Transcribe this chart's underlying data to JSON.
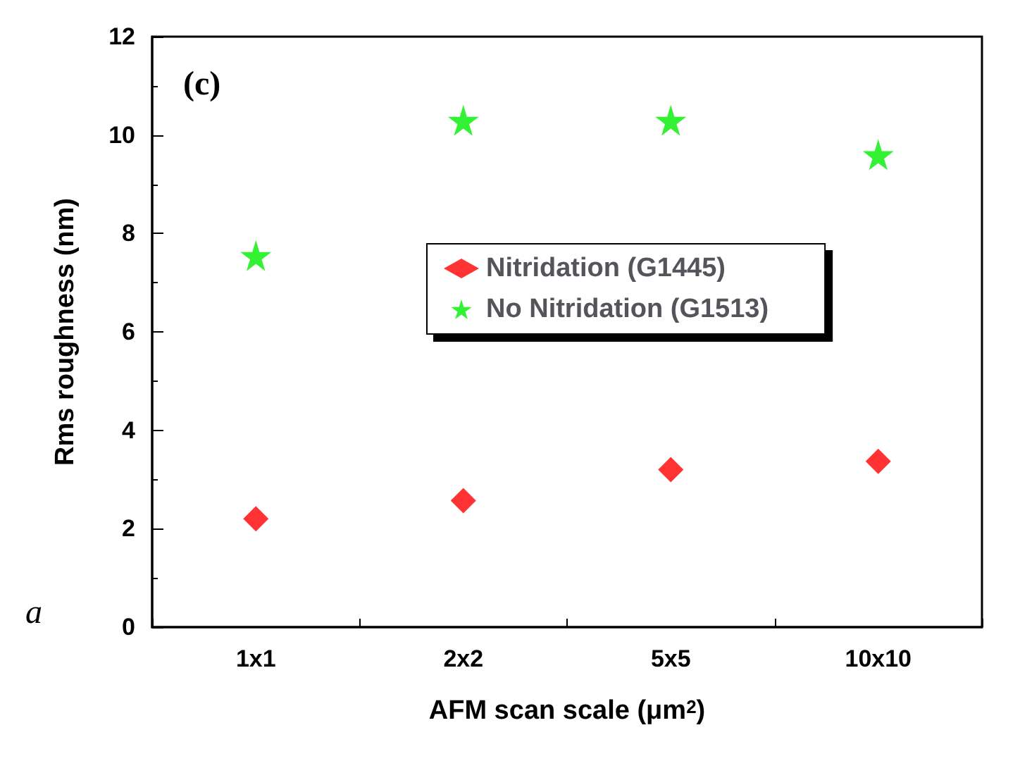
{
  "chart_data": {
    "type": "scatter",
    "xlabel": "AFM scan scale (μm$^{2}$)",
    "ylabel": "Rms roughness (nm)",
    "categories": [
      "1x1",
      "2x2",
      "5x5",
      "10x10"
    ],
    "series": [
      {
        "name": "Nitridation (G1445)",
        "color": "#ff0000",
        "marker": "diamond",
        "values": [
          2.2,
          2.57,
          3.2,
          3.37
        ]
      },
      {
        "name": "No Nitridation (G1513)",
        "color": "#00ee00",
        "marker": "star",
        "values": [
          7.55,
          10.3,
          10.3,
          9.6
        ]
      }
    ],
    "ylim": [
      0,
      12
    ],
    "yticks": [
      0,
      2,
      4,
      6,
      8,
      10,
      12
    ],
    "grid": false,
    "legend": "right",
    "annotations": [
      "(c)",
      "a"
    ]
  }
}
